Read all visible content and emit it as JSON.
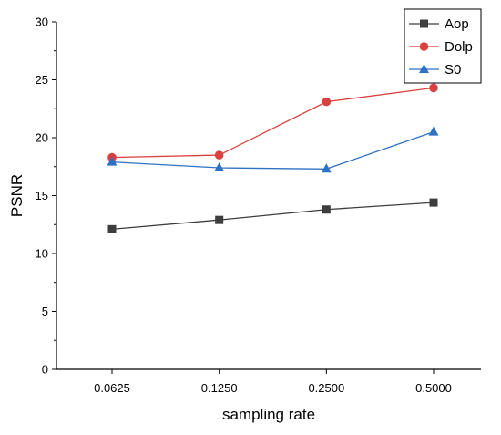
{
  "chart_data": {
    "type": "line",
    "categories": [
      "0.0625",
      "0.1250",
      "0.2500",
      "0.5000"
    ],
    "xlabel": "sampling rate",
    "ylabel": "PSNR",
    "ylim": [
      0,
      30
    ],
    "yticks": [
      "0",
      "5",
      "10",
      "15",
      "20",
      "25",
      "30"
    ],
    "grid": false,
    "legend_position": "top-right",
    "series": [
      {
        "name": "Aop",
        "color": "#3d3d3d",
        "marker": "square",
        "values": [
          12.1,
          12.9,
          13.8,
          14.4
        ]
      },
      {
        "name": "Dolp",
        "color": "#d9413e",
        "marker": "circle",
        "values": [
          18.3,
          18.5,
          23.1,
          24.3
        ]
      },
      {
        "name": "S0",
        "color": "#2f72c4",
        "marker": "triangle",
        "values": [
          17.9,
          17.4,
          17.3,
          20.5
        ]
      }
    ]
  }
}
